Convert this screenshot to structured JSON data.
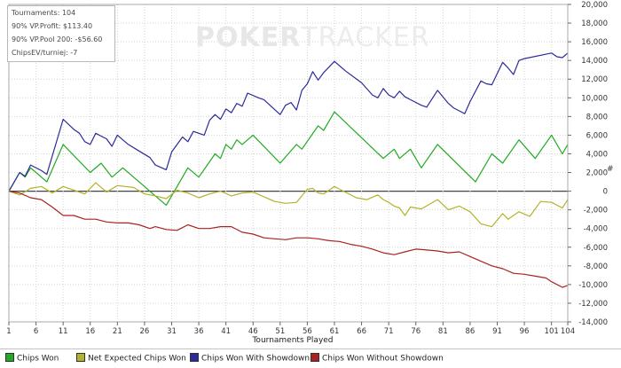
{
  "stats": {
    "tournaments": "Tournaments: 104",
    "vp_profit": "90% VP.Profit: $113.40",
    "vp_pool": "90% VP.Pool 200: -$56.60",
    "chips_ev": "ChipsEV/turniej: -7"
  },
  "watermark": {
    "part1": "POKER",
    "part2": "TRACKER"
  },
  "colors": {
    "chips_won": "#22aa22",
    "net_expected": "#b3b329",
    "with_showdown": "#2b2b9b",
    "without_showdown": "#aa2222"
  },
  "chart_data": {
    "type": "line",
    "xlabel": "Tournaments Played",
    "ylabel": "#",
    "xlim": [
      1,
      104
    ],
    "ylim": [
      -14000,
      20000
    ],
    "y_tick_step": 2000,
    "x_ticks": [
      1,
      6,
      11,
      16,
      21,
      26,
      31,
      36,
      41,
      46,
      51,
      56,
      61,
      66,
      71,
      76,
      81,
      86,
      91,
      96,
      101,
      104
    ],
    "y_ticks": [
      20000,
      18000,
      16000,
      14000,
      12000,
      10000,
      8000,
      6000,
      4000,
      2000,
      0,
      -2000,
      -4000,
      -6000,
      -8000,
      -10000,
      -12000,
      -14000
    ],
    "y_tick_labels": [
      "20,000",
      "18,000",
      "16,000",
      "14,000",
      "12,000",
      "10,000",
      "8,000",
      "6,000",
      "4,000",
      "2,000",
      "0",
      "-2,000",
      "-4,000",
      "-6,000",
      "-8,000",
      "-10,000",
      "-12,000",
      "-14,000"
    ],
    "grid": true,
    "legend_position": "bottom",
    "series": [
      {
        "name": "Chips Won",
        "points": [
          [
            1,
            0
          ],
          [
            2,
            1000
          ],
          [
            3,
            2000
          ],
          [
            4,
            1500
          ],
          [
            5,
            2500
          ],
          [
            6,
            2000
          ],
          [
            8,
            1000
          ],
          [
            11,
            5000
          ],
          [
            16,
            2000
          ],
          [
            18,
            3000
          ],
          [
            20,
            1500
          ],
          [
            22,
            2500
          ],
          [
            25,
            1000
          ],
          [
            28,
            -500
          ],
          [
            30,
            -1500
          ],
          [
            34,
            2500
          ],
          [
            36,
            1500
          ],
          [
            39,
            4000
          ],
          [
            40,
            3500
          ],
          [
            41,
            5000
          ],
          [
            42,
            4500
          ],
          [
            43,
            5500
          ],
          [
            44,
            5000
          ],
          [
            46,
            6000
          ],
          [
            51,
            3000
          ],
          [
            54,
            5000
          ],
          [
            55,
            4500
          ],
          [
            58,
            7000
          ],
          [
            59,
            6500
          ],
          [
            61,
            8500
          ],
          [
            70,
            3500
          ],
          [
            72,
            4500
          ],
          [
            73,
            3500
          ],
          [
            75,
            4500
          ],
          [
            77,
            2500
          ],
          [
            80,
            5000
          ],
          [
            87,
            1000
          ],
          [
            90,
            4000
          ],
          [
            92,
            3000
          ],
          [
            95,
            5500
          ],
          [
            98,
            3500
          ],
          [
            101,
            6000
          ],
          [
            103,
            4000
          ],
          [
            104,
            5000
          ]
        ]
      },
      {
        "name": "Net Expected Chips Won",
        "points": [
          [
            1,
            0
          ],
          [
            3,
            -400
          ],
          [
            5,
            300
          ],
          [
            7,
            500
          ],
          [
            9,
            -200
          ],
          [
            11,
            500
          ],
          [
            13,
            100
          ],
          [
            15,
            -300
          ],
          [
            17,
            900
          ],
          [
            19,
            -100
          ],
          [
            21,
            600
          ],
          [
            24,
            400
          ],
          [
            26,
            -300
          ],
          [
            28,
            -500
          ],
          [
            30,
            -800
          ],
          [
            32,
            100
          ],
          [
            34,
            -200
          ],
          [
            36,
            -700
          ],
          [
            38,
            -300
          ],
          [
            40,
            0
          ],
          [
            42,
            -500
          ],
          [
            44,
            -200
          ],
          [
            46,
            -100
          ],
          [
            48,
            -600
          ],
          [
            50,
            -1100
          ],
          [
            52,
            -1300
          ],
          [
            54,
            -1200
          ],
          [
            56,
            200
          ],
          [
            57,
            300
          ],
          [
            58,
            -200
          ],
          [
            59,
            -300
          ],
          [
            61,
            500
          ],
          [
            63,
            -100
          ],
          [
            65,
            -700
          ],
          [
            67,
            -900
          ],
          [
            69,
            -400
          ],
          [
            70,
            -900
          ],
          [
            71,
            -1200
          ],
          [
            72,
            -1600
          ],
          [
            73,
            -1800
          ],
          [
            74,
            -2600
          ],
          [
            75,
            -1700
          ],
          [
            77,
            -1900
          ],
          [
            80,
            -900
          ],
          [
            82,
            -2000
          ],
          [
            84,
            -1600
          ],
          [
            86,
            -2200
          ],
          [
            88,
            -3500
          ],
          [
            90,
            -3800
          ],
          [
            92,
            -2400
          ],
          [
            93,
            -3000
          ],
          [
            95,
            -2200
          ],
          [
            97,
            -2700
          ],
          [
            99,
            -1100
          ],
          [
            101,
            -1200
          ],
          [
            103,
            -1800
          ],
          [
            104,
            -900
          ]
        ]
      },
      {
        "name": "Chips Won With Showdown",
        "points": [
          [
            1,
            0
          ],
          [
            2,
            1000
          ],
          [
            3,
            2000
          ],
          [
            4,
            1600
          ],
          [
            5,
            2800
          ],
          [
            7,
            2200
          ],
          [
            8,
            1800
          ],
          [
            11,
            7700
          ],
          [
            13,
            6600
          ],
          [
            14,
            6200
          ],
          [
            15,
            5300
          ],
          [
            16,
            5000
          ],
          [
            17,
            6200
          ],
          [
            19,
            5600
          ],
          [
            20,
            4800
          ],
          [
            21,
            6000
          ],
          [
            23,
            5000
          ],
          [
            25,
            4300
          ],
          [
            27,
            3600
          ],
          [
            28,
            2800
          ],
          [
            30,
            2300
          ],
          [
            31,
            4200
          ],
          [
            33,
            5800
          ],
          [
            34,
            5300
          ],
          [
            35,
            6400
          ],
          [
            37,
            6000
          ],
          [
            38,
            7600
          ],
          [
            39,
            8200
          ],
          [
            40,
            7700
          ],
          [
            41,
            8800
          ],
          [
            42,
            8400
          ],
          [
            43,
            9400
          ],
          [
            44,
            9100
          ],
          [
            45,
            10500
          ],
          [
            47,
            10000
          ],
          [
            48,
            9800
          ],
          [
            51,
            8200
          ],
          [
            52,
            9200
          ],
          [
            53,
            9500
          ],
          [
            54,
            8700
          ],
          [
            55,
            10800
          ],
          [
            56,
            11500
          ],
          [
            57,
            12800
          ],
          [
            58,
            11900
          ],
          [
            59,
            12700
          ],
          [
            61,
            13900
          ],
          [
            63,
            12900
          ],
          [
            66,
            11600
          ],
          [
            68,
            10300
          ],
          [
            69,
            10000
          ],
          [
            70,
            11000
          ],
          [
            71,
            10300
          ],
          [
            72,
            10000
          ],
          [
            73,
            10700
          ],
          [
            74,
            10100
          ],
          [
            75,
            9800
          ],
          [
            77,
            9200
          ],
          [
            78,
            9000
          ],
          [
            80,
            10800
          ],
          [
            82,
            9400
          ],
          [
            83,
            8900
          ],
          [
            84,
            8600
          ],
          [
            85,
            8300
          ],
          [
            86,
            9600
          ],
          [
            88,
            11800
          ],
          [
            89,
            11500
          ],
          [
            90,
            11400
          ],
          [
            92,
            13800
          ],
          [
            93,
            13200
          ],
          [
            94,
            12500
          ],
          [
            95,
            14000
          ],
          [
            96,
            14200
          ],
          [
            101,
            14800
          ],
          [
            102,
            14400
          ],
          [
            103,
            14300
          ],
          [
            104,
            14800
          ]
        ]
      },
      {
        "name": "Chips Won Without Showdown",
        "points": [
          [
            1,
            0
          ],
          [
            3,
            -200
          ],
          [
            5,
            -700
          ],
          [
            7,
            -900
          ],
          [
            9,
            -1700
          ],
          [
            11,
            -2600
          ],
          [
            13,
            -2600
          ],
          [
            15,
            -3000
          ],
          [
            17,
            -3000
          ],
          [
            19,
            -3300
          ],
          [
            21,
            -3400
          ],
          [
            23,
            -3400
          ],
          [
            25,
            -3600
          ],
          [
            27,
            -4000
          ],
          [
            28,
            -3800
          ],
          [
            30,
            -4100
          ],
          [
            32,
            -4200
          ],
          [
            34,
            -3600
          ],
          [
            36,
            -4000
          ],
          [
            38,
            -4000
          ],
          [
            40,
            -3800
          ],
          [
            42,
            -3800
          ],
          [
            44,
            -4400
          ],
          [
            46,
            -4600
          ],
          [
            48,
            -5000
          ],
          [
            50,
            -5100
          ],
          [
            52,
            -5200
          ],
          [
            54,
            -5000
          ],
          [
            56,
            -5000
          ],
          [
            58,
            -5100
          ],
          [
            60,
            -5300
          ],
          [
            62,
            -5400
          ],
          [
            64,
            -5700
          ],
          [
            66,
            -5900
          ],
          [
            68,
            -6200
          ],
          [
            70,
            -6600
          ],
          [
            72,
            -6800
          ],
          [
            74,
            -6500
          ],
          [
            76,
            -6200
          ],
          [
            78,
            -6300
          ],
          [
            80,
            -6400
          ],
          [
            82,
            -6600
          ],
          [
            84,
            -6500
          ],
          [
            86,
            -7000
          ],
          [
            88,
            -7500
          ],
          [
            90,
            -8000
          ],
          [
            92,
            -8300
          ],
          [
            94,
            -8800
          ],
          [
            96,
            -8900
          ],
          [
            98,
            -9100
          ],
          [
            100,
            -9300
          ],
          [
            101,
            -9700
          ],
          [
            103,
            -10300
          ],
          [
            104,
            -10100
          ]
        ]
      }
    ]
  }
}
